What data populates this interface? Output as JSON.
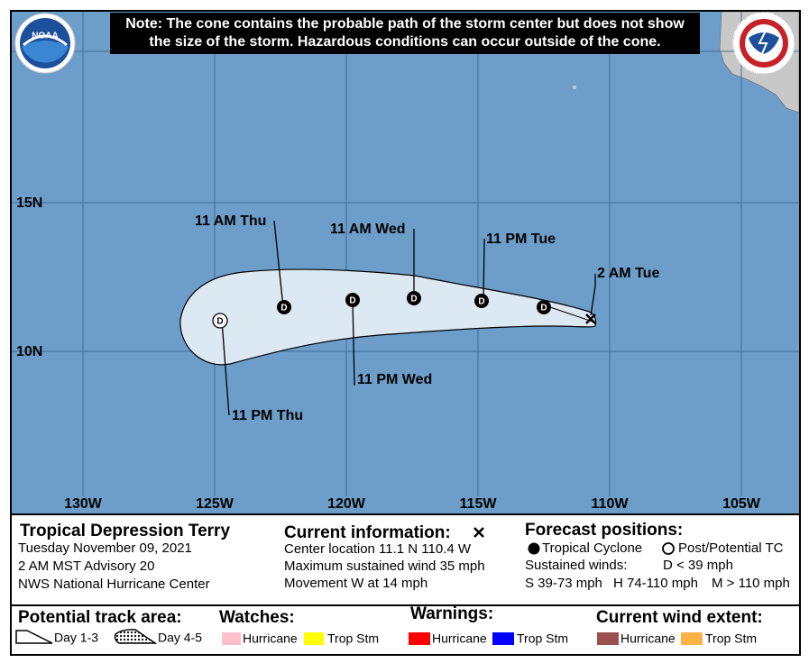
{
  "note": [
    "Note: The cone contains the probable path of the storm center but does not show",
    "the size of the storm. Hazardous conditions can occur outside of the cone."
  ],
  "logos": {
    "noaa": "NOAA",
    "nws": "NATIONAL WEATHER SERVICE"
  },
  "map": {
    "lat_labels": [
      "15N",
      "10N"
    ],
    "lon_labels": [
      "130W",
      "125W",
      "120W",
      "115W",
      "110W",
      "105W"
    ],
    "forecast_labels": [
      "2 AM Tue",
      "11 PM Tue",
      "11 AM Wed",
      "11 AM Thu",
      "11 PM Wed",
      "11 PM Thu"
    ],
    "markers": [
      "D",
      "D",
      "D",
      "D",
      "D",
      "D"
    ]
  },
  "info": {
    "storm": {
      "title": "Tropical Depression Terry",
      "lines": [
        "Tuesday November 09, 2021",
        "2 AM MST Advisory 20",
        "NWS National Hurricane Center"
      ]
    },
    "current": {
      "title": "Current information:",
      "lines": [
        "Center location 11.1 N 110.4 W",
        "Maximum sustained wind 35 mph",
        "Movement W at 14 mph"
      ]
    },
    "forecast": {
      "title": "Forecast positions:",
      "tropical": "Tropical Cyclone",
      "post": "Post/Potential TC",
      "winds": [
        "Sustained winds:",
        "D < 39 mph",
        "S 39-73 mph",
        "H 74-110 mph",
        "M > 110 mph"
      ]
    }
  },
  "legend": {
    "track": {
      "title": "Potential track area:",
      "day13": "Day 1-3",
      "day45": "Day 4-5"
    },
    "watches": {
      "title": "Watches:",
      "hurricane": "Hurricane",
      "tropstm": "Trop Stm"
    },
    "warnings": {
      "title": "Warnings:",
      "hurricane": "Hurricane",
      "tropstm": "Trop Stm"
    },
    "wind": {
      "title": "Current wind extent:",
      "hurricane": "Hurricane",
      "tropstm": "Trop Stm"
    }
  }
}
